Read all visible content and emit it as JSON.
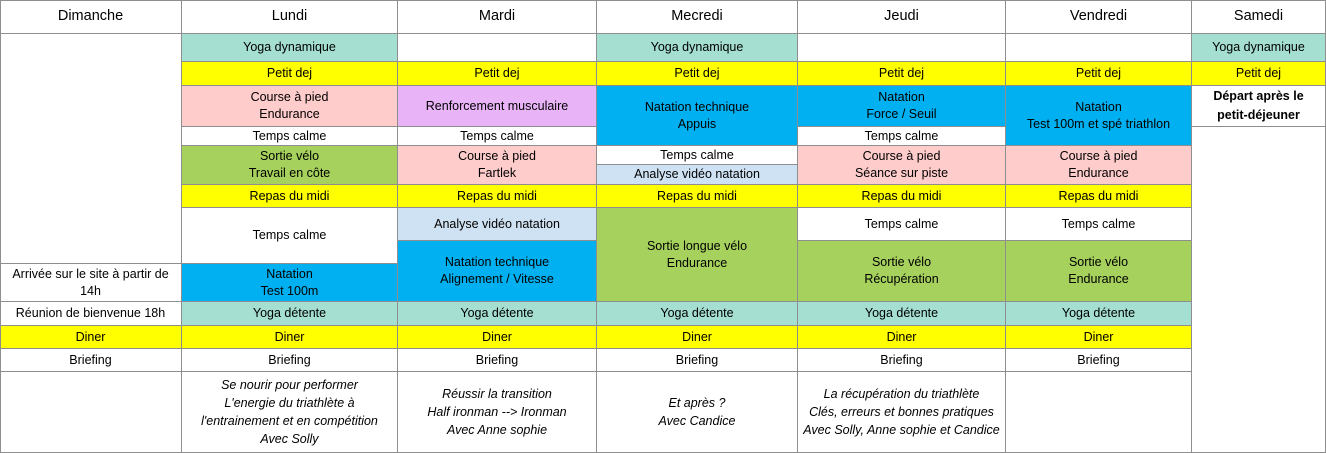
{
  "days": [
    "Dimanche",
    "Lundi",
    "Mardi",
    "Mecredi",
    "Jeudi",
    "Vendredi",
    "Samedi"
  ],
  "colors": {
    "teal": "#a4dfd1",
    "yellow": "#ffff00",
    "pink": "#ffcccc",
    "lilac": "#e9b4f7",
    "blue": "#00b0f0",
    "green": "#a5d15c",
    "light_blue": "#cfe2f3",
    "white": "#ffffff"
  },
  "dimanche": {
    "arrivee": [
      "Arrivée sur le site à partir de",
      "14h"
    ],
    "reunion": "Réunion de bienvenue 18h",
    "diner": "Diner",
    "briefing": "Briefing"
  },
  "lundi": {
    "yoga_matin": "Yoga dynamique",
    "petit_dej": "Petit dej",
    "course": [
      "Course à pied",
      "Endurance"
    ],
    "temps_calme_1": "Temps calme",
    "velo": [
      "Sortie vélo",
      "Travail en côte"
    ],
    "repas": "Repas du midi",
    "temps_calme_2": "Temps calme",
    "natation": [
      "Natation",
      "Test 100m"
    ],
    "yoga_soir": "Yoga détente",
    "diner": "Diner",
    "briefing": "Briefing",
    "conference": [
      "Se nourir pour performer",
      "L'energie du triathlète à",
      "l'entrainement et en compétition",
      "Avec Solly"
    ]
  },
  "mardi": {
    "petit_dej": "Petit dej",
    "renfo": "Renforcement musculaire",
    "temps_calme": "Temps calme",
    "course": [
      "Course à pied",
      "Fartlek"
    ],
    "repas": "Repas du midi",
    "analyse": "Analyse vidéo natation",
    "natation": [
      "Natation technique",
      "Alignement / Vitesse"
    ],
    "yoga_soir": "Yoga détente",
    "diner": "Diner",
    "briefing": "Briefing",
    "conference": [
      "Réussir la transition",
      "Half ironman --> Ironman",
      "Avec Anne sophie"
    ]
  },
  "mercredi": {
    "yoga_matin": "Yoga dynamique",
    "petit_dej": "Petit dej",
    "natation": [
      "Natation technique",
      "Appuis"
    ],
    "temps_calme": "Temps calme",
    "analyse": "Analyse vidéo natation",
    "repas": "Repas du midi",
    "velo": [
      "Sortie longue vélo",
      "Endurance"
    ],
    "yoga_soir": "Yoga détente",
    "diner": "Diner",
    "briefing": "Briefing",
    "conference": [
      "Et après ?",
      "Avec Candice"
    ]
  },
  "jeudi": {
    "petit_dej": "Petit dej",
    "natation": [
      "Natation",
      "Force / Seuil"
    ],
    "temps_calme_1": "Temps calme",
    "course": [
      "Course à pied",
      "Séance sur piste"
    ],
    "repas": "Repas du midi",
    "temps_calme_2": "Temps calme",
    "velo": [
      "Sortie vélo",
      "Récupération"
    ],
    "yoga_soir": "Yoga détente",
    "diner": "Diner",
    "briefing": "Briefing",
    "conference": [
      "La récupération du triathlète",
      "Clés, erreurs et bonnes pratiques",
      "Avec Solly, Anne sophie et Candice"
    ]
  },
  "vendredi": {
    "petit_dej": "Petit dej",
    "natation": [
      "Natation",
      "Test 100m et spé triathlon"
    ],
    "course": [
      "Course à pied",
      "Endurance"
    ],
    "repas": "Repas du midi",
    "temps_calme": "Temps calme",
    "velo": [
      "Sortie vélo",
      "Endurance"
    ],
    "yoga_soir": "Yoga détente",
    "diner": "Diner",
    "briefing": "Briefing"
  },
  "samedi": {
    "yoga_matin": "Yoga dynamique",
    "petit_dej": "Petit dej",
    "depart": [
      "Départ après le",
      "petit-déjeuner"
    ]
  }
}
